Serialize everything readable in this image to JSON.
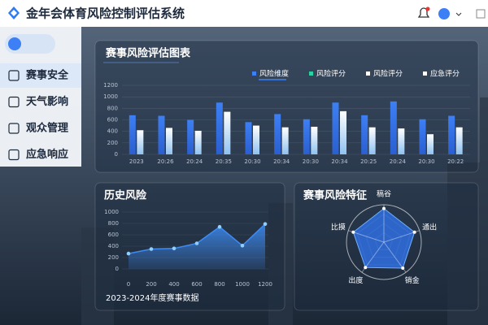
{
  "header": {
    "title": "金年会体育风险控制评估系统"
  },
  "sidebar": {
    "items": [
      "赛事安全",
      "天气影响",
      "观众管理",
      "应急响应"
    ]
  },
  "chart_data": [
    {
      "type": "bar",
      "title": "赛事风险评估图表",
      "legend": [
        {
          "name": "风险维度",
          "color": "#3d7ff5"
        },
        {
          "name": "风险评分",
          "color": "#2ad1a3"
        },
        {
          "name": "风险评分",
          "color": "#ffffff"
        },
        {
          "name": "应急评分",
          "color": "#ffffff"
        }
      ],
      "categories": [
        "2023",
        "20:26",
        "20:24",
        "20:35",
        "20:30",
        "20:34",
        "20:30",
        "20:34",
        "20:25",
        "20:24",
        "20:30",
        "20:22"
      ],
      "series": [
        {
          "color": "#3d7ff5",
          "values": [
            680,
            670,
            600,
            900,
            560,
            700,
            610,
            900,
            680,
            920,
            610,
            670
          ]
        },
        {
          "color": "#eaf3ff",
          "values": [
            420,
            460,
            410,
            740,
            500,
            470,
            480,
            750,
            470,
            450,
            350,
            470
          ]
        }
      ],
      "ylim": [
        0,
        1200
      ],
      "yticks": [
        0,
        200,
        400,
        600,
        800,
        1000,
        1200
      ],
      "grid": true
    },
    {
      "type": "area",
      "title": "历史风险",
      "caption": "2023-2024年度赛事数据",
      "color": "#3d8cf5",
      "x": [
        0,
        200,
        400,
        600,
        800,
        1000,
        1200
      ],
      "values": [
        270,
        350,
        360,
        450,
        740,
        410,
        790
      ],
      "xlim": [
        0,
        1200
      ],
      "xticks": [
        0,
        200,
        400,
        600,
        800,
        1000,
        1200
      ],
      "ylim": [
        0,
        1000
      ],
      "yticks": [
        0,
        200,
        400,
        600,
        800,
        1000
      ],
      "grid": true
    },
    {
      "type": "radar",
      "title": "赛事风险特征",
      "color": "#2f6ee0",
      "categories": [
        "稿谷",
        "通出",
        "销金",
        "出度",
        "比摸"
      ],
      "values": [
        90,
        86,
        86,
        84,
        86
      ],
      "rlim": [
        0,
        100
      ]
    }
  ]
}
